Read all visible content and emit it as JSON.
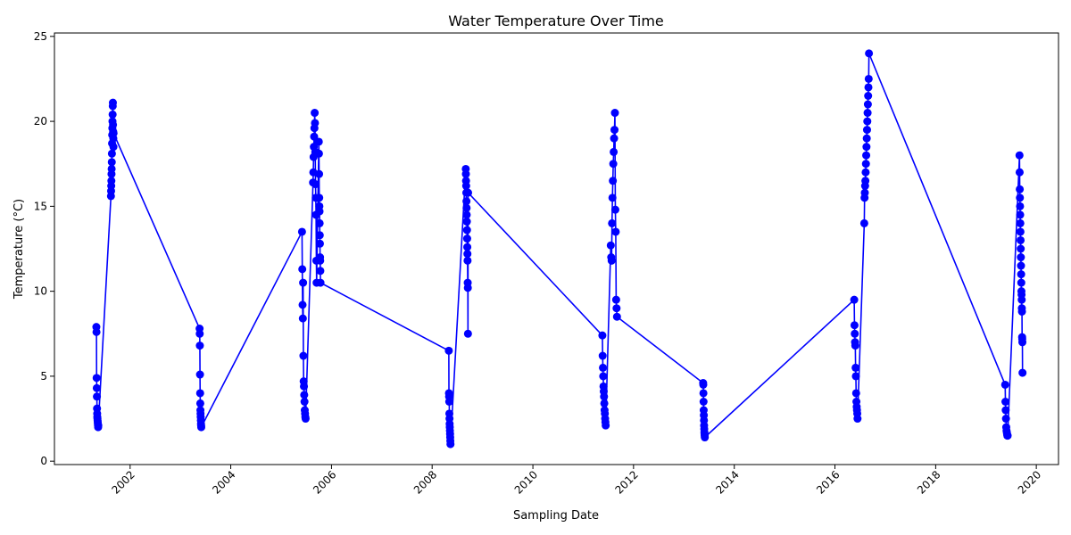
{
  "chart_data": {
    "type": "line",
    "title": "Water Temperature Over Time",
    "xlabel": "Sampling Date",
    "ylabel": "Temperature (°C)",
    "xlim": [
      "2000-07-01",
      "2020-06-10"
    ],
    "ylim": [
      -0.2,
      25.2
    ],
    "grid": false,
    "legend": "none",
    "x_ticks": [
      {
        "date": "2002-01-01",
        "label": "2002"
      },
      {
        "date": "2004-01-01",
        "label": "2004"
      },
      {
        "date": "2006-01-01",
        "label": "2006"
      },
      {
        "date": "2008-01-01",
        "label": "2008"
      },
      {
        "date": "2010-01-01",
        "label": "2010"
      },
      {
        "date": "2012-01-01",
        "label": "2012"
      },
      {
        "date": "2014-01-01",
        "label": "2014"
      },
      {
        "date": "2016-01-01",
        "label": "2016"
      },
      {
        "date": "2018-01-01",
        "label": "2018"
      },
      {
        "date": "2020-01-01",
        "label": "2020"
      }
    ],
    "y_ticks": [
      {
        "value": 0,
        "label": "0"
      },
      {
        "value": 5,
        "label": "5"
      },
      {
        "value": 10,
        "label": "10"
      },
      {
        "value": 15,
        "label": "15"
      },
      {
        "value": 20,
        "label": "20"
      },
      {
        "value": 25,
        "label": "25"
      }
    ],
    "color": "#0000ff",
    "series": [
      {
        "x": [
          "2001-05-01",
          "2001-05-02",
          "2001-05-03",
          "2001-05-04",
          "2001-05-05",
          "2001-05-06",
          "2001-05-07",
          "2001-05-08",
          "2001-05-09",
          "2001-05-10",
          "2001-05-11",
          "2001-05-12",
          "2001-05-13",
          "2001-05-14",
          "2001-05-15",
          "2001-08-15",
          "2001-08-16",
          "2001-08-17",
          "2001-08-18",
          "2001-08-19",
          "2001-08-20",
          "2001-08-21",
          "2001-08-22",
          "2001-08-23",
          "2001-08-24",
          "2001-08-25",
          "2001-08-26",
          "2001-08-27",
          "2001-08-28",
          "2001-08-29",
          "2001-08-30",
          "2001-08-31",
          "2001-09-01",
          "2001-09-02",
          "2001-09-03",
          "2003-05-20",
          "2003-05-21",
          "2003-05-22",
          "2003-05-23",
          "2003-05-24",
          "2003-05-25",
          "2003-05-26",
          "2003-05-27",
          "2003-05-28",
          "2003-05-29",
          "2003-05-30",
          "2003-05-31",
          "2003-06-01",
          "2005-06-01",
          "2005-06-03",
          "2005-06-05",
          "2005-06-07",
          "2005-06-09",
          "2005-06-11",
          "2005-06-13",
          "2005-06-15",
          "2005-06-17",
          "2005-06-19",
          "2005-06-21",
          "2005-06-23",
          "2005-06-25",
          "2005-06-27",
          "2005-08-20",
          "2005-08-22",
          "2005-08-24",
          "2005-08-26",
          "2005-08-28",
          "2005-08-30",
          "2005-09-01",
          "2005-09-03",
          "2005-09-05",
          "2005-09-07",
          "2005-09-09",
          "2005-09-11",
          "2005-09-13",
          "2005-09-15",
          "2005-10-01",
          "2005-10-02",
          "2005-10-03",
          "2005-10-04",
          "2005-10-05",
          "2005-10-06",
          "2005-10-07",
          "2005-10-08",
          "2005-10-09",
          "2005-10-10",
          "2005-10-11",
          "2005-10-12",
          "2005-10-13",
          "2008-05-01",
          "2008-05-02",
          "2008-05-03",
          "2008-05-04",
          "2008-05-05",
          "2008-05-06",
          "2008-05-07",
          "2008-05-08",
          "2008-05-09",
          "2008-05-10",
          "2008-05-11",
          "2008-05-12",
          "2008-05-13",
          "2008-09-01",
          "2008-09-02",
          "2008-09-03",
          "2008-09-04",
          "2008-09-05",
          "2008-09-06",
          "2008-09-07",
          "2008-09-08",
          "2008-09-09",
          "2008-09-10",
          "2008-09-11",
          "2008-09-12",
          "2008-09-13",
          "2008-09-14",
          "2008-09-15",
          "2008-09-16",
          "2008-09-17",
          "2008-09-18",
          "2011-05-20",
          "2011-05-22",
          "2011-05-24",
          "2011-05-26",
          "2011-05-28",
          "2011-05-30",
          "2011-06-01",
          "2011-06-03",
          "2011-06-05",
          "2011-06-07",
          "2011-06-09",
          "2011-06-11",
          "2011-06-13",
          "2011-07-20",
          "2011-07-23",
          "2011-07-26",
          "2011-07-29",
          "2011-08-01",
          "2011-08-04",
          "2011-08-07",
          "2011-08-10",
          "2011-08-13",
          "2011-08-16",
          "2011-08-19",
          "2011-08-22",
          "2011-08-25",
          "2011-08-28",
          "2011-08-31",
          "2011-09-03",
          "2013-05-20",
          "2013-05-21",
          "2013-05-22",
          "2013-05-23",
          "2013-05-24",
          "2013-05-25",
          "2013-05-26",
          "2013-05-27",
          "2013-05-28",
          "2013-05-29",
          "2013-05-30",
          "2013-05-31",
          "2013-06-01",
          "2016-05-20",
          "2016-05-22",
          "2016-05-24",
          "2016-05-26",
          "2016-05-28",
          "2016-05-30",
          "2016-06-01",
          "2016-06-03",
          "2016-06-05",
          "2016-06-07",
          "2016-06-09",
          "2016-06-11",
          "2016-06-13",
          "2016-08-01",
          "2016-08-03",
          "2016-08-05",
          "2016-08-07",
          "2016-08-09",
          "2016-08-11",
          "2016-08-13",
          "2016-08-15",
          "2016-08-17",
          "2016-08-19",
          "2016-08-21",
          "2016-08-23",
          "2016-08-25",
          "2016-08-27",
          "2016-08-29",
          "2016-08-31",
          "2016-09-02",
          "2016-09-04",
          "2019-05-20",
          "2019-05-22",
          "2019-05-24",
          "2019-05-26",
          "2019-05-28",
          "2019-05-30",
          "2019-06-01",
          "2019-06-03",
          "2019-06-05",
          "2019-06-07",
          "2019-09-01",
          "2019-09-02",
          "2019-09-03",
          "2019-09-04",
          "2019-09-05",
          "2019-09-06",
          "2019-09-07",
          "2019-09-08",
          "2019-09-09",
          "2019-09-10",
          "2019-09-11",
          "2019-09-12",
          "2019-09-13",
          "2019-09-14",
          "2019-09-15",
          "2019-09-16",
          "2019-09-17",
          "2019-09-18",
          "2019-09-19",
          "2019-09-20",
          "2019-09-21",
          "2019-09-22",
          "2019-09-23"
        ],
        "y": [
          7.9,
          7.6,
          4.9,
          4.3,
          3.8,
          3.1,
          2.8,
          2.6,
          2.5,
          2.4,
          2.3,
          2.2,
          2.1,
          2.0,
          2.1,
          15.6,
          15.9,
          16.2,
          16.5,
          16.9,
          17.2,
          17.6,
          18.1,
          18.7,
          19.2,
          19.6,
          20.0,
          20.4,
          20.9,
          21.1,
          19.8,
          19.4,
          19.0,
          18.5,
          19.3,
          7.8,
          7.5,
          6.8,
          5.1,
          4.0,
          3.4,
          3.0,
          2.8,
          2.6,
          2.4,
          2.2,
          2.1,
          2.0,
          13.5,
          11.3,
          9.2,
          8.4,
          10.5,
          6.2,
          4.7,
          4.4,
          3.9,
          3.5,
          3.0,
          2.8,
          2.6,
          2.5,
          16.4,
          17.0,
          17.9,
          18.5,
          19.1,
          19.6,
          20.5,
          19.9,
          18.2,
          16.3,
          15.5,
          14.5,
          11.8,
          10.5,
          18.8,
          18.1,
          16.9,
          15.5,
          15.0,
          14.7,
          14.0,
          13.3,
          12.8,
          12.0,
          11.8,
          11.2,
          10.5,
          6.5,
          4.0,
          3.8,
          3.5,
          2.8,
          2.5,
          2.2,
          2.0,
          1.8,
          1.6,
          1.4,
          1.2,
          1.0,
          17.2,
          16.9,
          16.5,
          16.2,
          15.8,
          15.3,
          14.9,
          14.5,
          14.1,
          13.6,
          13.1,
          12.6,
          12.2,
          11.8,
          10.5,
          10.2,
          7.5,
          15.8,
          7.4,
          6.2,
          5.5,
          5.0,
          4.4,
          4.1,
          3.8,
          3.4,
          3.0,
          2.8,
          2.5,
          2.3,
          2.1,
          12.7,
          12.0,
          11.8,
          14.0,
          15.5,
          16.5,
          17.5,
          18.2,
          19.0,
          19.5,
          20.5,
          14.8,
          13.5,
          9.5,
          9.0,
          8.5,
          4.6,
          4.5,
          4.0,
          3.5,
          3.0,
          2.7,
          2.4,
          2.1,
          1.9,
          1.7,
          1.6,
          1.5,
          1.4,
          9.5,
          8.0,
          7.5,
          7.0,
          6.8,
          5.5,
          5.0,
          4.0,
          3.5,
          3.2,
          3.0,
          2.8,
          2.5,
          14.0,
          15.5,
          15.8,
          16.2,
          16.5,
          17.0,
          17.5,
          18.0,
          18.5,
          19.0,
          19.5,
          20.0,
          20.5,
          21.0,
          21.5,
          22.0,
          22.5,
          24.0,
          4.5,
          3.5,
          3.0,
          2.5,
          2.0,
          1.8,
          1.7,
          1.6,
          1.5,
          1.5,
          18.0,
          17.0,
          16.0,
          15.5,
          15.0,
          14.5,
          14.0,
          13.5,
          13.0,
          12.5,
          12.0,
          11.5,
          11.0,
          10.5,
          10.0,
          9.8,
          9.5,
          9.0,
          8.8,
          7.3,
          7.2,
          7.0,
          5.2
        ]
      }
    ]
  }
}
